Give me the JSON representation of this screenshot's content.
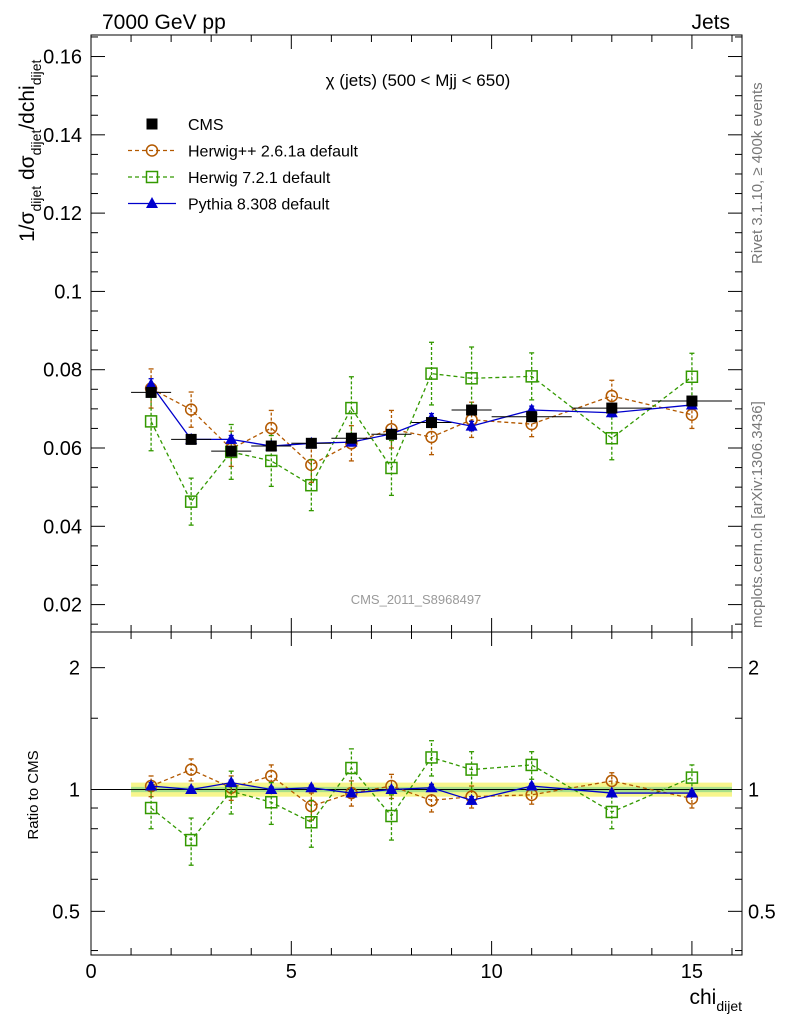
{
  "header": {
    "left": "7000 GeV pp",
    "right": "Jets"
  },
  "side": {
    "rivet": "Rivet 3.1.10, ≥ 400k events",
    "mcplots": "mcplots.cern.ch [arXiv:1306.3436]"
  },
  "chart_data": {
    "type": "scatter",
    "title": "χ (jets) (500 < Mjj <  650)",
    "watermark": "CMS_2011_S8968497",
    "xlabel": "chi",
    "xlabel_sub": "dijet",
    "ylabel_main_text": "1/σdijet dσdijet/dchidijet",
    "ylabel_ratio": "Ratio to CMS",
    "xlim": [
      0,
      16.25
    ],
    "ylim_main": [
      0.013,
      0.1655
    ],
    "ylim_ratio": [
      0.39,
      2.45
    ],
    "ratio_scale": "log",
    "x_ticks": [
      0,
      5,
      10,
      15
    ],
    "x_tick_labels": [
      "0",
      "5",
      "10",
      "15"
    ],
    "y_ticks_main": [
      0.02,
      0.04,
      0.06,
      0.08,
      0.1,
      0.12,
      0.14,
      0.16
    ],
    "y_tick_labels_main": [
      "0.02",
      "0.04",
      "0.06",
      "0.08",
      "0.1",
      "0.12",
      "0.14",
      "0.16"
    ],
    "y_ticks_ratio": [
      0.5,
      1,
      2
    ],
    "y_tick_labels_ratio": [
      "0.5",
      "1",
      "2"
    ],
    "band": {
      "x_range": [
        1,
        16
      ],
      "inner": 0.015,
      "outer": 0.04
    },
    "series": [
      {
        "name": "CMS",
        "style": "data",
        "color": "#000000",
        "x": [
          1.5,
          2.5,
          3.5,
          4.5,
          5.5,
          6.5,
          7.5,
          8.5,
          9.5,
          11.0,
          13.0,
          15.0
        ],
        "y": [
          0.0742,
          0.0622,
          0.0592,
          0.0605,
          0.0612,
          0.0625,
          0.0635,
          0.0665,
          0.0697,
          0.068,
          0.0702,
          0.072
        ],
        "err": [
          0.0011,
          0.0011,
          0.0011,
          0.0011,
          0.0011,
          0.0011,
          0.0011,
          0.0012,
          0.0012,
          0.0012,
          0.0012,
          0.0012
        ],
        "xerr": [
          0.5,
          0.5,
          0.5,
          0.5,
          0.5,
          0.5,
          0.5,
          0.5,
          0.5,
          1.0,
          1.0,
          1.0
        ]
      },
      {
        "name": "Herwig++ 2.6.1a default",
        "style": "circle-dashed",
        "color": "#b35900",
        "x": [
          1.5,
          2.5,
          3.5,
          4.5,
          5.5,
          6.5,
          7.5,
          8.5,
          9.5,
          11.0,
          13.0,
          15.0
        ],
        "y": [
          0.0752,
          0.0698,
          0.0598,
          0.0651,
          0.0557,
          0.0612,
          0.0648,
          0.0628,
          0.0672,
          0.0661,
          0.0733,
          0.0685
        ],
        "err": [
          0.005,
          0.0045,
          0.0045,
          0.0045,
          0.0045,
          0.0045,
          0.0048,
          0.0045,
          0.0045,
          0.0032,
          0.004,
          0.0035
        ],
        "ratio": [
          1.02,
          1.12,
          1.01,
          1.08,
          0.91,
          0.98,
          1.02,
          0.94,
          0.96,
          0.97,
          1.05,
          0.95
        ],
        "ratio_err": [
          0.06,
          0.07,
          0.07,
          0.07,
          0.07,
          0.07,
          0.07,
          0.06,
          0.06,
          0.05,
          0.05,
          0.05
        ]
      },
      {
        "name": "Herwig 7.2.1 default",
        "style": "square-dashed",
        "color": "#339900",
        "x": [
          1.5,
          2.5,
          3.5,
          4.5,
          5.5,
          6.5,
          7.5,
          8.5,
          9.5,
          11.0,
          13.0,
          15.0
        ],
        "y": [
          0.0668,
          0.0463,
          0.059,
          0.0567,
          0.0505,
          0.0702,
          0.0549,
          0.079,
          0.0778,
          0.0783,
          0.0625,
          0.0782
        ],
        "err": [
          0.0075,
          0.006,
          0.007,
          0.0065,
          0.0065,
          0.008,
          0.007,
          0.008,
          0.008,
          0.006,
          0.0055,
          0.006
        ],
        "ratio": [
          0.9,
          0.75,
          0.99,
          0.93,
          0.83,
          1.13,
          0.86,
          1.2,
          1.12,
          1.15,
          0.88,
          1.07
        ],
        "ratio_err": [
          0.1,
          0.1,
          0.12,
          0.11,
          0.11,
          0.13,
          0.11,
          0.12,
          0.12,
          0.09,
          0.08,
          0.08
        ]
      },
      {
        "name": "Pythia 8.308 default",
        "style": "triangle-solid",
        "color": "#0000cc",
        "x": [
          1.5,
          2.5,
          3.5,
          4.5,
          5.5,
          6.5,
          7.5,
          8.5,
          9.5,
          11.0,
          13.0,
          15.0
        ],
        "y": [
          0.0762,
          0.0622,
          0.0622,
          0.0605,
          0.0612,
          0.0615,
          0.0636,
          0.0676,
          0.0656,
          0.0697,
          0.069,
          0.071
        ],
        "err": [
          0.0015,
          0.001,
          0.001,
          0.001,
          0.001,
          0.001,
          0.001,
          0.0012,
          0.0012,
          0.001,
          0.001,
          0.001
        ],
        "ratio": [
          1.02,
          1.0,
          1.04,
          1.0,
          1.01,
          0.98,
          1.0,
          1.01,
          0.94,
          1.02,
          0.98,
          0.98
        ],
        "ratio_err": [
          0.02,
          0.015,
          0.015,
          0.015,
          0.015,
          0.015,
          0.015,
          0.02,
          0.02,
          0.015,
          0.015,
          0.015
        ]
      }
    ]
  }
}
